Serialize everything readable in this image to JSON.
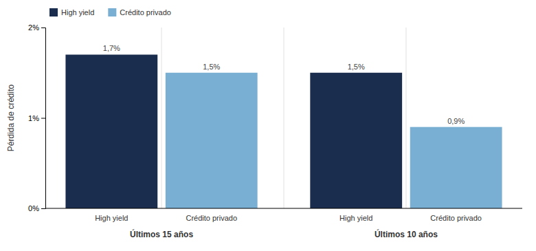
{
  "chart_data": {
    "type": "bar",
    "categories": [
      "Últimos 15 años",
      "Últimos 10 años"
    ],
    "series": [
      {
        "name": "High yield",
        "color": "#1b2d4f",
        "values": [
          1.7,
          1.5
        ],
        "value_labels": [
          "1,7%",
          "1,5%"
        ]
      },
      {
        "name": "Crédito privado",
        "color": "#7aafd4",
        "values": [
          1.5,
          0.9
        ],
        "value_labels": [
          "1,5%",
          "0,9%"
        ]
      }
    ],
    "ylabel": "Pérdida de crédito",
    "ylim": [
      0,
      2.0
    ],
    "yticks": [
      {
        "value": 0,
        "label": "0%"
      },
      {
        "value": 1.0,
        "label": "1%"
      },
      {
        "value": 2.0,
        "label": "2%"
      }
    ],
    "grid": false,
    "legend": "upper left",
    "data_labels": true
  }
}
